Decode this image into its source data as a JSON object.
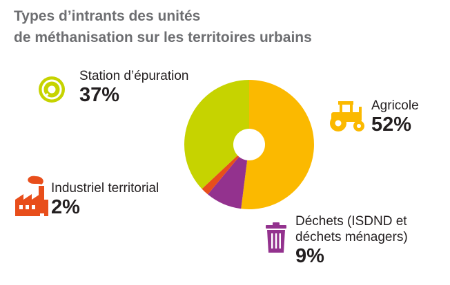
{
  "title": {
    "line1": "Types d’intrants des unités",
    "line2": "de méthanisation sur les territoires urbains"
  },
  "colors": {
    "agricole": "#fbb900",
    "dechets": "#93328e",
    "industriel": "#e84e1b",
    "station": "#c6d300",
    "title": "#6d6e71",
    "text": "#231f20"
  },
  "icons": {
    "station": "sludge-disc-icon",
    "agricole": "tractor-icon",
    "dechets": "trash-bin-icon",
    "industriel": "factory-icon"
  },
  "chart_data": {
    "type": "pie",
    "donut": true,
    "title": "Types d’intrants des unités de méthanisation sur les territoires urbains",
    "slices": [
      {
        "key": "agricole",
        "label": "Agricole",
        "value": 52,
        "value_label": "52%",
        "color": "#fbb900"
      },
      {
        "key": "dechets",
        "label_line1": "Déchets (ISDND et",
        "label_line2": "déchets ménagers)",
        "value": 9,
        "value_label": "9%",
        "color": "#93328e"
      },
      {
        "key": "industriel",
        "label": "Industriel territorial",
        "value": 2,
        "value_label": "2%",
        "color": "#e84e1b"
      },
      {
        "key": "station",
        "label": "Station d’épuration",
        "value": 37,
        "value_label": "37%",
        "color": "#c6d300"
      }
    ]
  }
}
